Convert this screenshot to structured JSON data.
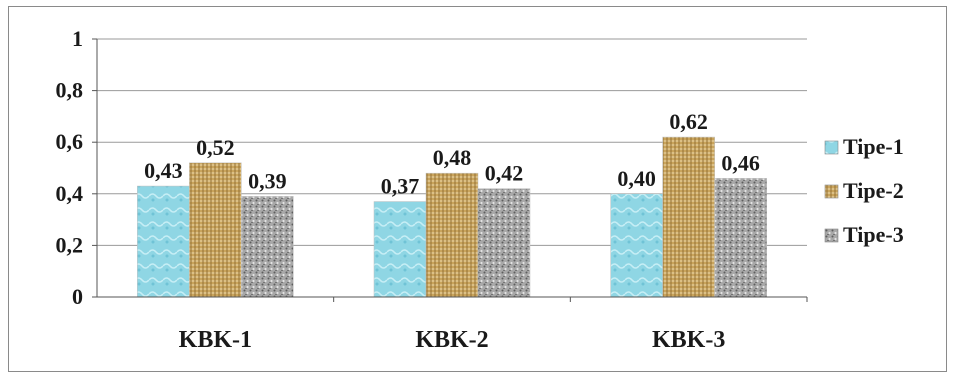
{
  "chart_data": {
    "type": "bar",
    "categories": [
      "KBK-1",
      "KBK-2",
      "KBK-3"
    ],
    "series": [
      {
        "name": "Tipe-1",
        "values": [
          0.43,
          0.37,
          0.4
        ],
        "labels": [
          "0,43",
          "0,37",
          "0,40"
        ],
        "color": "#8fd6e4"
      },
      {
        "name": "Tipe-2",
        "values": [
          0.52,
          0.48,
          0.62
        ],
        "labels": [
          "0,52",
          "0,48",
          "0,62"
        ],
        "color": "#c9a45c"
      },
      {
        "name": "Tipe-3",
        "values": [
          0.39,
          0.42,
          0.46
        ],
        "labels": [
          "0,39",
          "0,42",
          "0,46"
        ],
        "color": "#a8a8a8"
      }
    ],
    "yticks": [
      {
        "value": 0,
        "label": "0"
      },
      {
        "value": 0.2,
        "label": "0,2"
      },
      {
        "value": 0.4,
        "label": "0,4"
      },
      {
        "value": 0.6,
        "label": "0,6"
      },
      {
        "value": 0.8,
        "label": "0,8"
      },
      {
        "value": 1,
        "label": "1"
      }
    ],
    "ylim": [
      0,
      1
    ],
    "grid": true,
    "legend": "right",
    "title": "",
    "xlabel": "",
    "ylabel": ""
  }
}
